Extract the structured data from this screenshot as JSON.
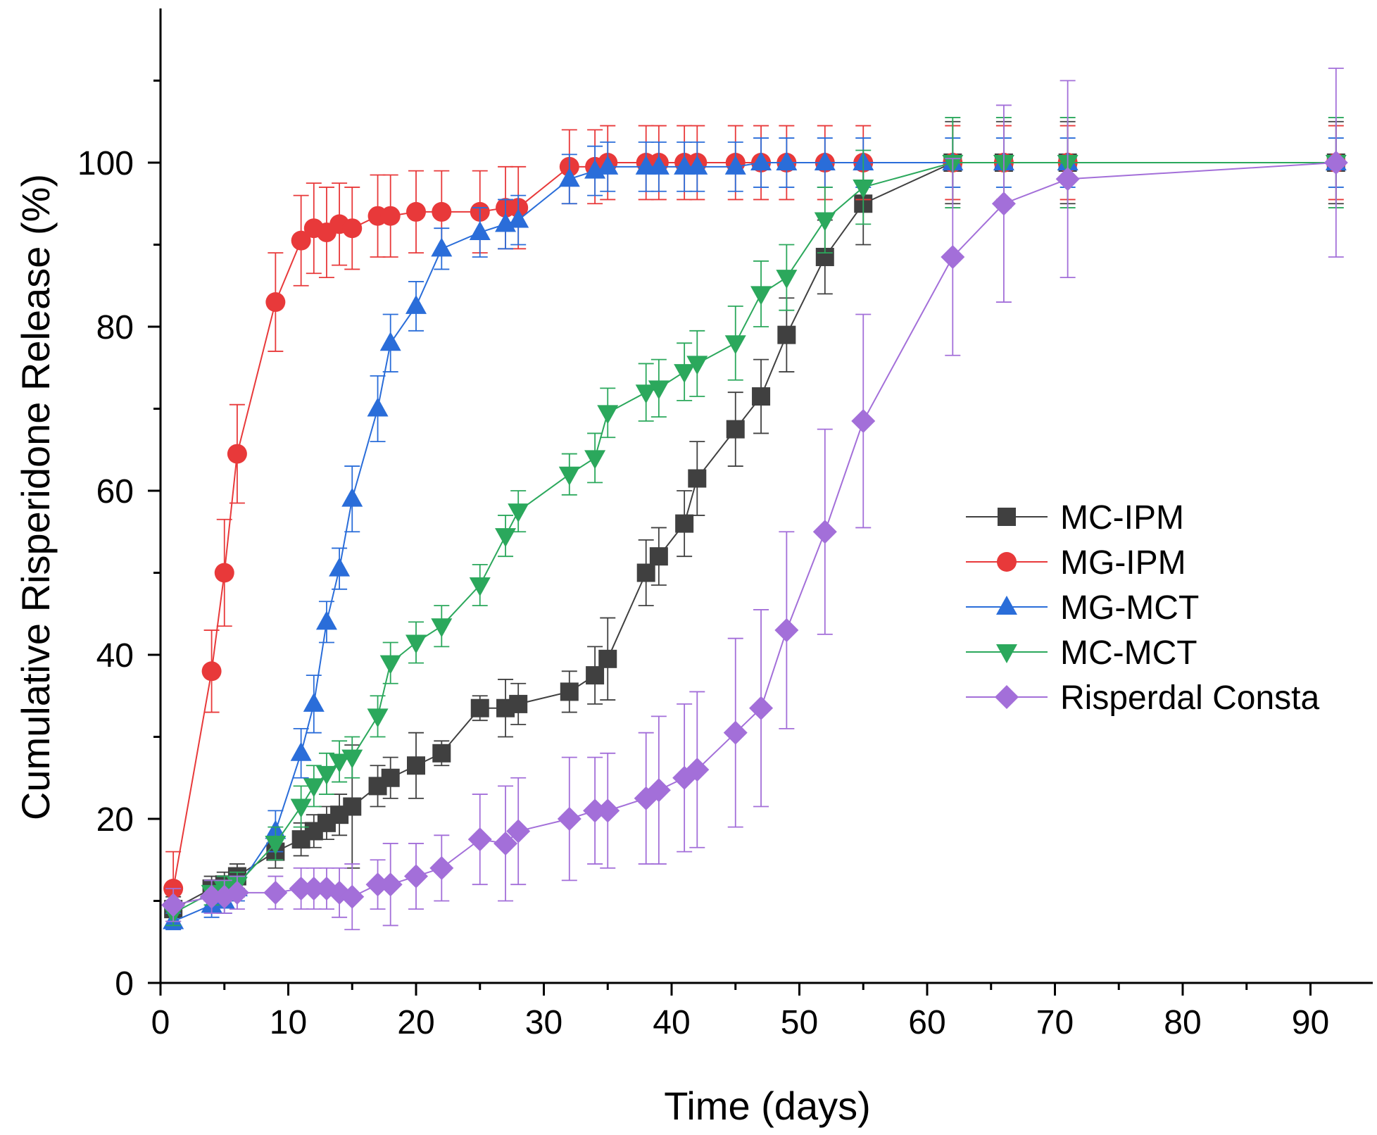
{
  "chart_data": {
    "type": "line",
    "title": "",
    "xlabel": "Time (days)",
    "ylabel": "Cumulative Risperidone Release (%)",
    "xlim": [
      0,
      95
    ],
    "ylim": [
      0,
      115
    ],
    "xticks": [
      0,
      10,
      20,
      30,
      40,
      50,
      60,
      70,
      80,
      90
    ],
    "yticks": [
      0,
      20,
      40,
      60,
      80,
      100
    ],
    "legend_position": "center-right",
    "series": [
      {
        "name": "MC-IPM",
        "color": "#404040",
        "marker": "square",
        "x": [
          1,
          4,
          5,
          6,
          9,
          11,
          12,
          13,
          14,
          15,
          17,
          18,
          20,
          22,
          25,
          27,
          28,
          32,
          34,
          35,
          38,
          39,
          41,
          42,
          45,
          47,
          49,
          52,
          55,
          62,
          66,
          71,
          92
        ],
        "y": [
          9,
          11.5,
          12,
          13,
          16,
          17.5,
          18.5,
          19.5,
          20.5,
          21.5,
          24,
          25,
          26.5,
          28,
          33.5,
          33.5,
          34,
          35.5,
          37.5,
          39.5,
          50,
          52,
          56,
          61.5,
          67.5,
          71.5,
          79,
          88.5,
          95,
          100,
          100,
          100,
          100
        ],
        "err": [
          1.5,
          1.5,
          1.5,
          1.5,
          2,
          2,
          2,
          2,
          2.5,
          7.5,
          2.5,
          2.5,
          4,
          1.5,
          1.5,
          3.5,
          2.5,
          2.5,
          3.5,
          5,
          4,
          3.5,
          4,
          4.5,
          4.5,
          4.5,
          4.5,
          4.5,
          5,
          5,
          5,
          5,
          5
        ]
      },
      {
        "name": "MG-IPM",
        "color": "#e8393a",
        "marker": "circle",
        "x": [
          1,
          4,
          5,
          6,
          9,
          11,
          12,
          13,
          14,
          15,
          17,
          18,
          20,
          22,
          25,
          27,
          28,
          32,
          34,
          35,
          38,
          39,
          41,
          42,
          45,
          47,
          49,
          52,
          55,
          62,
          66,
          71,
          92
        ],
        "y": [
          11.5,
          38,
          50,
          64.5,
          83,
          90.5,
          92,
          91.5,
          92.5,
          92,
          93.5,
          93.5,
          94,
          94,
          94,
          94.5,
          94.5,
          99.5,
          99.5,
          100,
          100,
          100,
          100,
          100,
          100,
          100,
          100,
          100,
          100,
          100,
          100,
          100,
          100
        ],
        "err": [
          4.5,
          5,
          6.5,
          6,
          6,
          5.5,
          5.5,
          5.5,
          5,
          5,
          5,
          5,
          5,
          5,
          5,
          5,
          5,
          4.5,
          4.5,
          4.5,
          4.5,
          4.5,
          4.5,
          4.5,
          4.5,
          4.5,
          4.5,
          4.5,
          4.5,
          4.5,
          4.5,
          4.5,
          4.5
        ]
      },
      {
        "name": "MG-MCT",
        "color": "#2a6dd9",
        "marker": "triangle-up",
        "x": [
          1,
          4,
          5,
          6,
          9,
          11,
          12,
          13,
          14,
          15,
          17,
          18,
          20,
          22,
          25,
          27,
          28,
          32,
          34,
          35,
          38,
          39,
          41,
          42,
          45,
          47,
          49,
          52,
          55,
          62,
          66,
          71,
          92
        ],
        "y": [
          7.5,
          9.5,
          10,
          11.5,
          18.5,
          28,
          34,
          44,
          50.5,
          59,
          70,
          78,
          82.5,
          89.5,
          91.5,
          92.5,
          93,
          98,
          99,
          99.5,
          99.5,
          99.5,
          99.5,
          99.5,
          99.5,
          100,
          100,
          100,
          100,
          100,
          100,
          100,
          100
        ],
        "err": [
          1,
          1.5,
          1.5,
          1.5,
          2.5,
          3,
          3.5,
          2.5,
          2.5,
          4,
          4,
          3.5,
          3,
          2.5,
          3,
          3,
          3,
          3,
          3,
          3,
          3,
          3,
          3,
          3,
          3,
          3,
          3,
          3,
          3,
          3,
          3,
          3,
          3
        ]
      },
      {
        "name": "MC-MCT",
        "color": "#2ba85c",
        "marker": "triangle-down",
        "x": [
          1,
          4,
          5,
          6,
          9,
          11,
          12,
          13,
          14,
          15,
          17,
          18,
          20,
          22,
          25,
          27,
          28,
          32,
          34,
          35,
          38,
          39,
          41,
          42,
          45,
          47,
          49,
          52,
          55,
          62,
          66,
          71,
          92
        ],
        "y": [
          8.5,
          11,
          11.5,
          12,
          17,
          21.5,
          24,
          25.5,
          27,
          27.5,
          32.5,
          39,
          41.5,
          43.5,
          48.5,
          54.5,
          57.5,
          62,
          64,
          69.5,
          72,
          72.5,
          74.5,
          75.5,
          78,
          84,
          86,
          93,
          97,
          100,
          100,
          100,
          100
        ],
        "err": [
          1.5,
          1.5,
          1.5,
          1.5,
          2,
          2.5,
          2.5,
          2.5,
          2.5,
          2.5,
          2.5,
          2.5,
          2.5,
          2.5,
          2.5,
          2.5,
          2.5,
          2.5,
          3,
          3,
          3.5,
          3.5,
          3.5,
          4,
          4.5,
          4,
          4,
          4,
          4.5,
          5.5,
          5.5,
          5.5,
          5.5
        ]
      },
      {
        "name": "Risperdal Consta",
        "color": "#a36fd9",
        "marker": "diamond",
        "x": [
          1,
          4,
          5,
          6,
          9,
          11,
          12,
          13,
          14,
          15,
          17,
          18,
          20,
          22,
          25,
          27,
          28,
          32,
          34,
          35,
          38,
          39,
          41,
          42,
          45,
          47,
          49,
          52,
          55,
          62,
          66,
          71,
          92
        ],
        "y": [
          9.5,
          10.5,
          10.5,
          11,
          11,
          11.5,
          11.5,
          11.5,
          11,
          10.5,
          12,
          12,
          13,
          14,
          17.5,
          17,
          18.5,
          20,
          21,
          21,
          22.5,
          23.5,
          25,
          26,
          30.5,
          33.5,
          43,
          55,
          68.5,
          88.5,
          95,
          98,
          100
        ],
        "err": [
          2,
          2,
          2,
          2,
          2,
          2.5,
          2.5,
          2.5,
          3,
          4,
          3,
          5,
          4,
          4,
          5.5,
          7,
          6.5,
          7.5,
          6.5,
          7,
          8,
          9,
          9,
          9.5,
          11.5,
          12,
          12,
          12.5,
          13,
          12,
          12,
          12,
          11.5
        ]
      }
    ]
  }
}
